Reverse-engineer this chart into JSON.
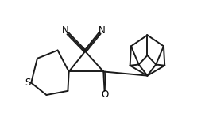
{
  "bg_color": "#ffffff",
  "line_color": "#1a1a1a",
  "line_width": 1.4,
  "text_color": "#000000",
  "figsize": [
    2.58,
    1.63
  ],
  "dpi": 100,
  "xlim": [
    0,
    10
  ],
  "ylim": [
    0,
    6.3
  ]
}
